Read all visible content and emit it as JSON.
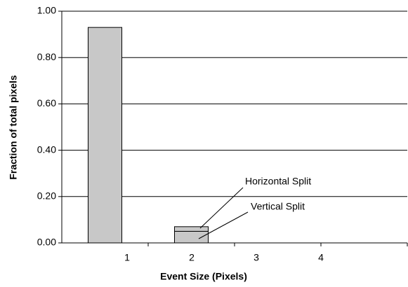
{
  "chart_data": {
    "type": "bar",
    "stacked": true,
    "xlabel": "Event Size (Pixels)",
    "ylabel": "Fraction of total pixels",
    "categories": [
      "1",
      "2",
      "3",
      "4"
    ],
    "series": [
      {
        "name": "Vertical Split",
        "color": "#c8c8c8",
        "values": [
          0.93,
          0.05,
          0,
          0
        ]
      },
      {
        "name": "Horizontal Split",
        "color": "#c8c8c8",
        "values": [
          0,
          0.02,
          0,
          0
        ]
      }
    ],
    "ylim": [
      0,
      1
    ],
    "yticks": [
      {
        "value": 0,
        "label": "0.00"
      },
      {
        "value": 0.2,
        "label": "0.20"
      },
      {
        "value": 0.4,
        "label": "0.40"
      },
      {
        "value": 0.6,
        "label": "0.60"
      },
      {
        "value": 0.8,
        "label": "0.80"
      },
      {
        "value": 1,
        "label": "1.00"
      }
    ],
    "grid": true
  }
}
